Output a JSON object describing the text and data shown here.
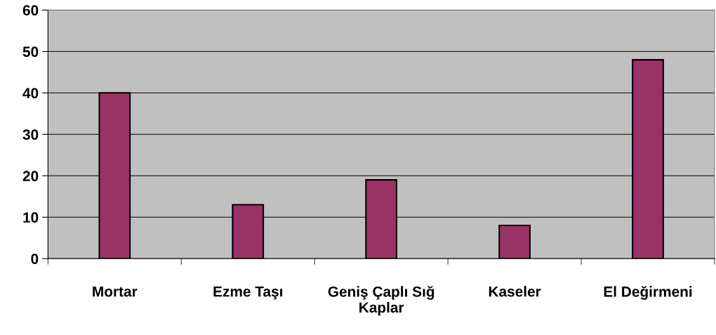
{
  "chart_data": {
    "type": "bar",
    "categories": [
      "Mortar",
      "Ezme Taşı",
      "Geniş Çaplı Sığ\nKaplar",
      "Kaseler",
      "El Değirmeni"
    ],
    "values": [
      40,
      13,
      19,
      8,
      48
    ],
    "color": "#993366",
    "ylim": [
      0,
      60
    ],
    "yticks": [
      0,
      10,
      20,
      30,
      40,
      50,
      60
    ],
    "grid": "y"
  }
}
